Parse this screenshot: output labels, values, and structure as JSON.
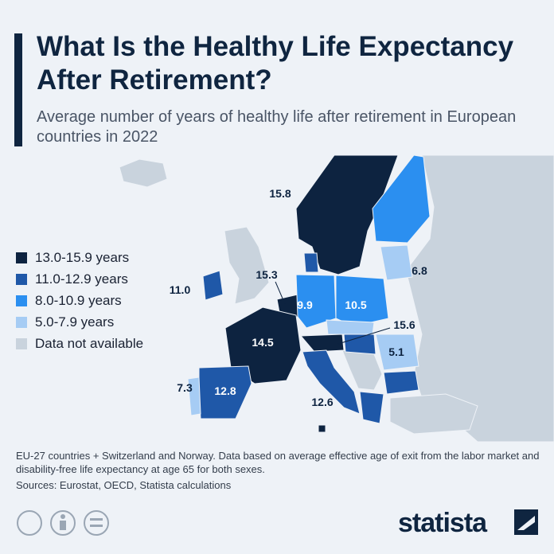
{
  "header": {
    "title": "What Is the Healthy Life Expectancy After Retirement?",
    "subtitle": "Average number of years of healthy life after retirement in European countries in 2022"
  },
  "legend": {
    "items": [
      {
        "label": "13.0-15.9 years",
        "color": "#0d2340"
      },
      {
        "label": "11.0-12.9 years",
        "color": "#1f58a8"
      },
      {
        "label": "8.0-10.9 years",
        "color": "#2b8ff0"
      },
      {
        "label": "5.0-7.9 years",
        "color": "#a6ccf4"
      },
      {
        "label": "Data not available",
        "color": "#c9d3dd"
      }
    ]
  },
  "map": {
    "labels": [
      "15.8",
      "11.0",
      "15.3",
      "9.9",
      "10.5",
      "6.8",
      "14.5",
      "15.6",
      "5.1",
      "7.3",
      "12.8",
      "12.6"
    ]
  },
  "footer": {
    "note": "EU-27 countries + Switzerland and Norway. Data based on average effective age of exit from the labor market and disability-free life expectancy at age 65 for both sexes.",
    "sources": "Sources: Eurostat, OECD, Statista calculations",
    "brand": "statista"
  }
}
